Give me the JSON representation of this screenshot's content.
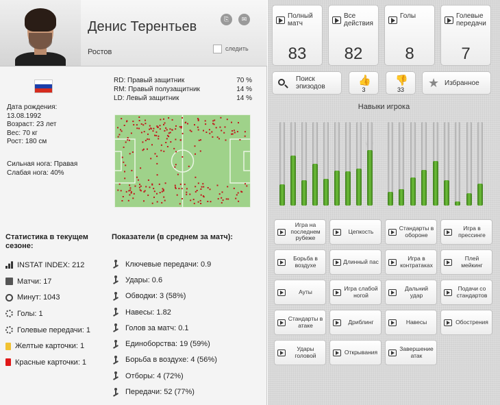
{
  "player": {
    "name": "Денис Терентьев",
    "club": "Ростов",
    "follow_label": "следить"
  },
  "flag_colors": [
    "#ffffff",
    "#1c3faa",
    "#d52b1e"
  ],
  "bio": [
    "Дата рождения:",
    "13.08.1992",
    "Возраст: 23 лет",
    "Вес: 70 кг",
    "Рост: 180 см"
  ],
  "foot": {
    "strong": "Сильная нога: Правая",
    "weak": "Слабая нога: 40%"
  },
  "positions": [
    {
      "label": "RD: Правый защитник",
      "pct": "70 %"
    },
    {
      "label": "RM: Правый полузащитник",
      "pct": "14 %"
    },
    {
      "label": "LD: Левый защитник",
      "pct": "14 %"
    }
  ],
  "season": {
    "title": "Статистика в текущем сезоне:",
    "items": [
      {
        "icon": "bar-chart-icon",
        "label": "INSTAT INDEX: 212"
      },
      {
        "icon": "calendar-icon",
        "label": "Матчи: 17"
      },
      {
        "icon": "clock-icon",
        "label": "Минут: 1043"
      },
      {
        "icon": "gear-icon",
        "label": "Голы: 1"
      },
      {
        "icon": "gear-icon",
        "label": "Голевые передачи: 1"
      },
      {
        "icon": "yellow-card-icon",
        "label": "Желтые карточки: 1"
      },
      {
        "icon": "red-card-icon",
        "label": "Красные карточки: 1"
      }
    ]
  },
  "averages": {
    "title": "Показатели (в среднем за матч):",
    "items": [
      {
        "icon": "player-pass-icon",
        "label": "Ключевые передачи: 0.9"
      },
      {
        "icon": "player-shot-icon",
        "label": "Удары: 0.6"
      },
      {
        "icon": "player-dribble-icon",
        "label": "Обводки: 3 (58%)"
      },
      {
        "icon": "player-cross-icon",
        "label": "Навесы: 1.82"
      },
      {
        "icon": "gear-icon",
        "label": "Голов за матч: 0.1"
      },
      {
        "icon": "player-duel-icon",
        "label": "Единоборства: 19 (59%)"
      },
      {
        "icon": "player-header-icon",
        "label": "Борьба в воздухе: 4 (56%)"
      },
      {
        "icon": "player-tackle-icon",
        "label": "Отборы: 4 (72%)"
      },
      {
        "icon": "player-pass-icon",
        "label": "Передачи: 52 (77%)"
      }
    ]
  },
  "tiles": [
    {
      "label": "Полный матч",
      "value": "83"
    },
    {
      "label": "Все действия",
      "value": "82"
    },
    {
      "label": "Голы",
      "value": "8"
    },
    {
      "label": "Голевые передачи",
      "value": "7"
    }
  ],
  "buttons": {
    "search": "Поиск эпизодов",
    "likes": "3",
    "dislikes": "33",
    "favorites": "Избранное"
  },
  "skills": {
    "title": "Навыки игрока",
    "levels": [
      0.25,
      0.6,
      0.3,
      0.5,
      0.32,
      0.42,
      0.41,
      0.44,
      0.66,
      0.16,
      0.2,
      0.34,
      0.43,
      0.53,
      0.3,
      0.05,
      0.15,
      0.26
    ]
  },
  "episodes": [
    "Игра на последнем рубеже",
    "Цепкость",
    "Стандарты в обороне",
    "Игра в прессинге",
    "Борьба в воздухе",
    "Длинный пас",
    "Игра в контратаках",
    "Плей мейкинг",
    "Ауты",
    "Игра слабой ногой",
    "Дальний удар",
    "Подачи со стандартов",
    "Стандарты в атаке",
    "Дриблинг",
    "Навесы",
    "Обострения",
    "Удары головой",
    "Открывания",
    "Завершение атак"
  ]
}
